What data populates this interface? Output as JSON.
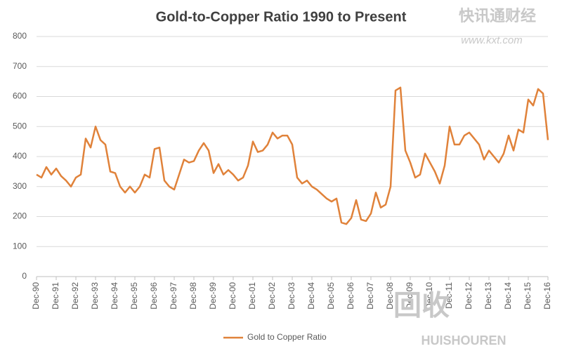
{
  "chart_data": {
    "type": "line",
    "title": "Gold-to-Copper  Ratio  1990 to Present",
    "categories": [
      "Dec-90",
      null,
      null,
      null,
      "Dec-91",
      null,
      null,
      null,
      "Dec-92",
      null,
      null,
      null,
      "Dec-93",
      null,
      null,
      null,
      "Dec-94",
      null,
      null,
      null,
      "Dec-95",
      null,
      null,
      null,
      "Dec-96",
      null,
      null,
      null,
      "Dec-97",
      null,
      null,
      null,
      "Dec-98",
      null,
      null,
      null,
      "Dec-99",
      null,
      null,
      null,
      "Dec-00",
      null,
      null,
      null,
      "Dec-01",
      null,
      null,
      null,
      "Dec-02",
      null,
      null,
      null,
      "Dec-03",
      null,
      null,
      null,
      "Dec-04",
      null,
      null,
      null,
      "Dec-05",
      null,
      null,
      null,
      "Dec-06",
      null,
      null,
      null,
      "Dec-07",
      null,
      null,
      null,
      "Dec-08",
      null,
      null,
      null,
      "Dec-09",
      null,
      null,
      null,
      "Dec-10",
      null,
      null,
      null,
      "Dec-11",
      null,
      null,
      null,
      "Dec-12",
      null,
      null,
      null,
      "Dec-13",
      null,
      null,
      null,
      "Dec-14",
      null,
      null,
      null,
      "Dec-15",
      null,
      null,
      null,
      "Dec-16"
    ],
    "series": [
      {
        "name": "Gold to Copper Ratio",
        "color": "#e0823a",
        "values": [
          340,
          330,
          365,
          340,
          360,
          335,
          320,
          300,
          330,
          340,
          460,
          430,
          500,
          455,
          440,
          350,
          345,
          300,
          280,
          300,
          280,
          300,
          340,
          330,
          425,
          430,
          320,
          300,
          290,
          340,
          390,
          380,
          385,
          420,
          445,
          420,
          345,
          375,
          340,
          355,
          340,
          320,
          330,
          370,
          450,
          415,
          420,
          440,
          480,
          460,
          470,
          470,
          440,
          330,
          310,
          320,
          300,
          290,
          275,
          260,
          250,
          260,
          180,
          175,
          195,
          255,
          190,
          185,
          210,
          280,
          230,
          240,
          300,
          620,
          630,
          420,
          380,
          330,
          340,
          410,
          380,
          350,
          310,
          370,
          500,
          440,
          440,
          470,
          480,
          460,
          440,
          390,
          420,
          400,
          380,
          410,
          470,
          420,
          490,
          480,
          590,
          570,
          625,
          610,
          455
        ]
      }
    ],
    "ylim": [
      0,
      800
    ],
    "yticks": [
      0,
      100,
      200,
      300,
      400,
      500,
      600,
      700,
      800
    ],
    "grid": true,
    "legend": "bottom",
    "watermarks": [
      "快讯通财经",
      "www.kxt.com",
      "回收",
      "HUISHOUREN"
    ]
  }
}
